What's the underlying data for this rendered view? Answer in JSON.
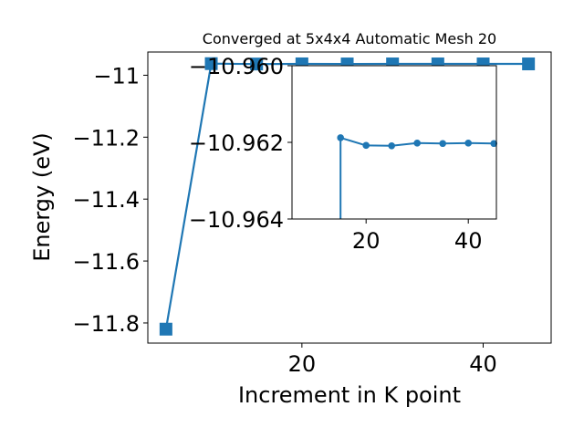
{
  "chart_data": [
    {
      "type": "line",
      "title": "Converged at 5x4x4 Automatic Mesh 20",
      "xlabel": "Increment in K point",
      "ylabel": "Energy (eV)",
      "xlim": [
        3.0,
        47.5
      ],
      "ylim": [
        -11.865,
        -10.925
      ],
      "xticks": [
        20,
        40
      ],
      "yticks": [
        -11.8,
        -11.6,
        -11.4,
        -11.2,
        -11.0
      ],
      "marker": "square",
      "color": "#1f77b4",
      "grid": false,
      "series": [
        {
          "x": [
            5,
            10,
            15,
            20,
            25,
            30,
            35,
            40,
            45
          ],
          "y": [
            -11.82,
            -10.9625,
            -10.9638,
            -10.9632,
            -10.9635,
            -10.9634,
            -10.9634,
            -10.9634,
            -10.9634
          ]
        }
      ]
    },
    {
      "type": "line",
      "title": "",
      "xlabel": "",
      "ylabel": "",
      "xlim": [
        5.5,
        45.5
      ],
      "ylim": [
        -10.964,
        -10.96
      ],
      "xticks": [
        20,
        40
      ],
      "yticks": [
        -10.964,
        -10.962,
        -10.96
      ],
      "marker": "circle",
      "color": "#1f77b4",
      "grid": false,
      "series": [
        {
          "x": [
            15,
            15,
            20,
            25,
            30,
            35,
            40,
            45
          ],
          "y": [
            -10.964,
            -10.96188,
            -10.96208,
            -10.96209,
            -10.96202,
            -10.96203,
            -10.96202,
            -10.96203
          ],
          "markers": [
            false,
            true,
            true,
            true,
            true,
            true,
            true,
            true
          ]
        }
      ]
    }
  ]
}
